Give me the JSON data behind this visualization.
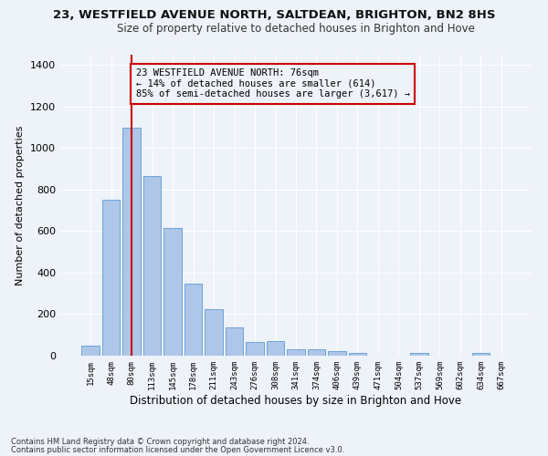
{
  "title_line1": "23, WESTFIELD AVENUE NORTH, SALTDEAN, BRIGHTON, BN2 8HS",
  "title_line2": "Size of property relative to detached houses in Brighton and Hove",
  "xlabel": "Distribution of detached houses by size in Brighton and Hove",
  "ylabel": "Number of detached properties",
  "categories": [
    "15sqm",
    "48sqm",
    "80sqm",
    "113sqm",
    "145sqm",
    "178sqm",
    "211sqm",
    "243sqm",
    "276sqm",
    "308sqm",
    "341sqm",
    "374sqm",
    "406sqm",
    "439sqm",
    "471sqm",
    "504sqm",
    "537sqm",
    "569sqm",
    "602sqm",
    "634sqm",
    "667sqm"
  ],
  "values": [
    50,
    750,
    1100,
    865,
    615,
    345,
    225,
    135,
    65,
    70,
    30,
    30,
    20,
    15,
    0,
    0,
    12,
    0,
    0,
    12,
    0
  ],
  "bar_color": "#aec6e8",
  "bar_edge_color": "#5b9bd5",
  "vline_x": 2,
  "vline_color": "#cc0000",
  "annotation_text": "23 WESTFIELD AVENUE NORTH: 76sqm\n← 14% of detached houses are smaller (614)\n85% of semi-detached houses are larger (3,617) →",
  "annotation_box_color": "#cc0000",
  "annotation_fontsize": 7.5,
  "ylim": [
    0,
    1450
  ],
  "footnote1": "Contains HM Land Registry data © Crown copyright and database right 2024.",
  "footnote2": "Contains public sector information licensed under the Open Government Licence v3.0.",
  "background_color": "#eef2f9",
  "grid_color": "#ffffff",
  "title_fontsize": 9.5,
  "subtitle_fontsize": 8.5,
  "xlabel_fontsize": 8.5,
  "ylabel_fontsize": 8.0,
  "tick_fontsize": 6.5,
  "footnote_fontsize": 6.0
}
